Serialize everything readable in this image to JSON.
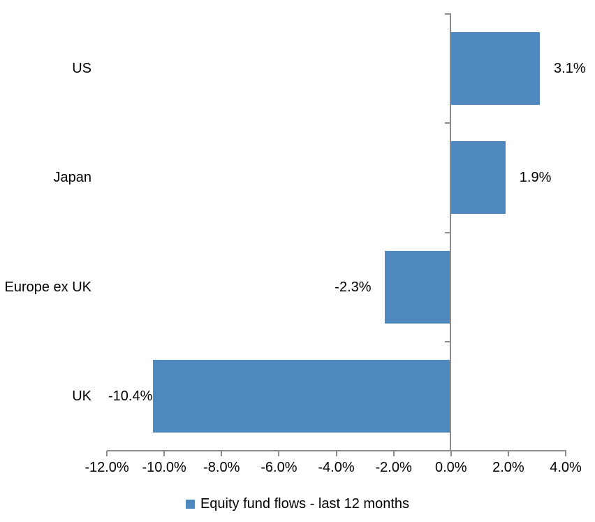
{
  "chart_data": {
    "type": "bar",
    "orientation": "horizontal",
    "categories": [
      "US",
      "Japan",
      "Europe ex UK",
      "UK"
    ],
    "series": [
      {
        "name": "Equity fund flows - last 12 months",
        "values": [
          3.1,
          1.9,
          -2.3,
          -10.4
        ],
        "value_labels": [
          "3.1%",
          "1.9%",
          "-2.3%",
          "-10.4%"
        ],
        "color": "#4E88BE"
      }
    ],
    "xlim": [
      -12,
      4
    ],
    "x_tick_values": [
      -12,
      -10,
      -8,
      -6,
      -4,
      -2,
      0,
      2,
      4
    ],
    "x_tick_labels": [
      "-12.0%",
      "-10.0%",
      "-8.0%",
      "-6.0%",
      "-4.0%",
      "-2.0%",
      "0.0%",
      "2.0%",
      "4.0%"
    ],
    "legend": {
      "position": "bottom",
      "items": [
        {
          "label": "Equity fund flows - last 12 months",
          "color": "#4E88BE"
        }
      ]
    },
    "axis_color": "#8C8C8C",
    "text_color": "#000000",
    "background_color": "#FFFFFF",
    "grid": false
  }
}
